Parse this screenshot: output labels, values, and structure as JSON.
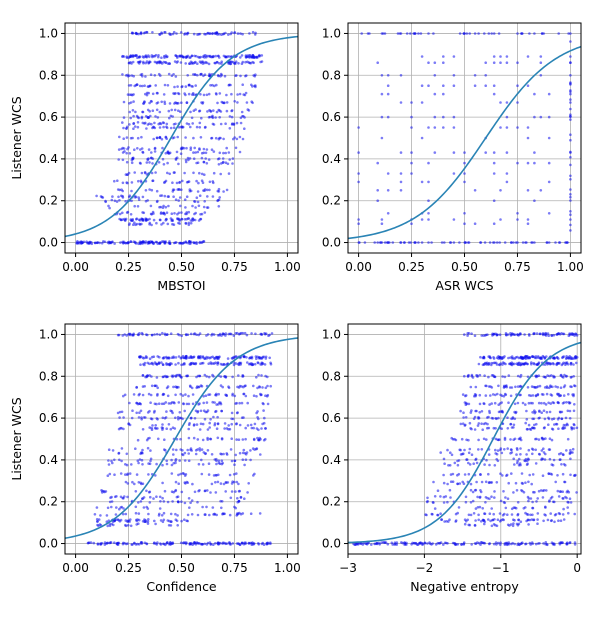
{
  "figure": {
    "colors": {
      "points": "#1010ee",
      "curve": "#2a84b5",
      "grid": "#b0b0b0",
      "frame": "#000000"
    }
  },
  "chart_data": [
    {
      "type": "scatter",
      "xlabel": "MBSTOI",
      "ylabel": "Listener WCS",
      "xlim": [
        -0.05,
        1.05
      ],
      "ylim": [
        -0.05,
        1.05
      ],
      "xticks": [
        0.0,
        0.25,
        0.5,
        0.75,
        1.0
      ],
      "xtick_labels": [
        "0.00",
        "0.25",
        "0.50",
        "0.75",
        "1.00"
      ],
      "yticks": [
        0.0,
        0.2,
        0.4,
        0.6,
        0.8,
        1.0
      ],
      "ytick_labels": [
        "0.0",
        "0.2",
        "0.4",
        "0.6",
        "0.8",
        "1.0"
      ],
      "grid": true,
      "fit_curve": {
        "type": "logistic",
        "midpoint": 0.45,
        "slope": 7.0
      },
      "point_bands": [
        {
          "y": 1.0,
          "x": [
            0.25,
            0.85
          ],
          "n": 70
        },
        {
          "y": 0.89,
          "x": [
            0.22,
            0.88
          ],
          "n": 130
        },
        {
          "y": 0.86,
          "x": [
            0.25,
            0.88
          ],
          "n": 90
        },
        {
          "y": 0.8,
          "x": [
            0.22,
            0.85
          ],
          "n": 50
        },
        {
          "y": 0.75,
          "x": [
            0.25,
            0.85
          ],
          "n": 40
        },
        {
          "y": 0.71,
          "x": [
            0.22,
            0.82
          ],
          "n": 40
        },
        {
          "y": 0.67,
          "x": [
            0.22,
            0.85
          ],
          "n": 40
        },
        {
          "y": 0.63,
          "x": [
            0.25,
            0.82
          ],
          "n": 35
        },
        {
          "y": 0.6,
          "x": [
            0.2,
            0.8
          ],
          "n": 35
        },
        {
          "y": 0.57,
          "x": [
            0.22,
            0.8
          ],
          "n": 35
        },
        {
          "y": 0.55,
          "x": [
            0.22,
            0.8
          ],
          "n": 30
        },
        {
          "y": 0.5,
          "x": [
            0.2,
            0.8
          ],
          "n": 35
        },
        {
          "y": 0.45,
          "x": [
            0.2,
            0.78
          ],
          "n": 30
        },
        {
          "y": 0.43,
          "x": [
            0.22,
            0.78
          ],
          "n": 30
        },
        {
          "y": 0.4,
          "x": [
            0.2,
            0.75
          ],
          "n": 30
        },
        {
          "y": 0.38,
          "x": [
            0.22,
            0.75
          ],
          "n": 25
        },
        {
          "y": 0.33,
          "x": [
            0.2,
            0.75
          ],
          "n": 25
        },
        {
          "y": 0.29,
          "x": [
            0.18,
            0.72
          ],
          "n": 30
        },
        {
          "y": 0.25,
          "x": [
            0.2,
            0.72
          ],
          "n": 30
        },
        {
          "y": 0.22,
          "x": [
            0.08,
            0.72
          ],
          "n": 30
        },
        {
          "y": 0.2,
          "x": [
            0.12,
            0.7
          ],
          "n": 25
        },
        {
          "y": 0.17,
          "x": [
            0.15,
            0.7
          ],
          "n": 20
        },
        {
          "y": 0.14,
          "x": [
            0.18,
            0.62
          ],
          "n": 35
        },
        {
          "y": 0.11,
          "x": [
            0.18,
            0.6
          ],
          "n": 60
        },
        {
          "y": 0.09,
          "x": [
            0.2,
            0.55
          ],
          "n": 25
        },
        {
          "y": 0.0,
          "x": [
            0.0,
            0.62
          ],
          "n": 140
        }
      ]
    },
    {
      "type": "scatter",
      "xlabel": "ASR WCS",
      "ylabel": "",
      "xlim": [
        -0.05,
        1.05
      ],
      "ylim": [
        -0.05,
        1.05
      ],
      "xticks": [
        0.0,
        0.25,
        0.5,
        0.75,
        1.0
      ],
      "xtick_labels": [
        "0.00",
        "0.25",
        "0.50",
        "0.75",
        "1.00"
      ],
      "yticks": [
        0.0,
        0.2,
        0.4,
        0.6,
        0.8,
        1.0
      ],
      "ytick_labels": [
        "0.0",
        "0.2",
        "0.4",
        "0.6",
        "0.8",
        "1.0"
      ],
      "grid": true,
      "fit_curve": {
        "type": "logistic",
        "midpoint": 0.6,
        "slope": 6.0
      },
      "grid_x_values": [
        0.0,
        0.09,
        0.11,
        0.14,
        0.2,
        0.25,
        0.3,
        0.33,
        0.36,
        0.4,
        0.45,
        0.5,
        0.55,
        0.6,
        0.64,
        0.67,
        0.7,
        0.75,
        0.8,
        0.83,
        0.86,
        0.9,
        1.0
      ],
      "grid_y_values": [
        0.0,
        0.09,
        0.11,
        0.14,
        0.2,
        0.25,
        0.29,
        0.33,
        0.38,
        0.43,
        0.5,
        0.55,
        0.6,
        0.67,
        0.71,
        0.75,
        0.8,
        0.86,
        0.89,
        1.0
      ],
      "dense_rows": [
        {
          "y": 0.0,
          "x": [
            0.0,
            1.0
          ],
          "n": 60
        },
        {
          "y": 1.0,
          "x": [
            0.0,
            1.0
          ],
          "n": 35
        }
      ],
      "dense_columns": [
        {
          "x": 1.0,
          "y": [
            0.0,
            1.0
          ],
          "n": 28
        }
      ]
    },
    {
      "type": "scatter",
      "xlabel": "Confidence",
      "ylabel": "Listener WCS",
      "xlim": [
        -0.05,
        1.05
      ],
      "ylim": [
        -0.05,
        1.05
      ],
      "xticks": [
        0.0,
        0.25,
        0.5,
        0.75,
        1.0
      ],
      "xtick_labels": [
        "0.00",
        "0.25",
        "0.50",
        "0.75",
        "1.00"
      ],
      "yticks": [
        0.0,
        0.2,
        0.4,
        0.6,
        0.8,
        1.0
      ],
      "ytick_labels": [
        "0.0",
        "0.2",
        "0.4",
        "0.6",
        "0.8",
        "1.0"
      ],
      "grid": true,
      "fit_curve": {
        "type": "logistic",
        "midpoint": 0.47,
        "slope": 7.0
      },
      "point_bands": [
        {
          "y": 1.0,
          "x": [
            0.2,
            0.93
          ],
          "n": 80
        },
        {
          "y": 0.89,
          "x": [
            0.3,
            0.93
          ],
          "n": 110
        },
        {
          "y": 0.86,
          "x": [
            0.3,
            0.93
          ],
          "n": 90
        },
        {
          "y": 0.8,
          "x": [
            0.25,
            0.93
          ],
          "n": 55
        },
        {
          "y": 0.75,
          "x": [
            0.25,
            0.93
          ],
          "n": 45
        },
        {
          "y": 0.71,
          "x": [
            0.2,
            0.92
          ],
          "n": 45
        },
        {
          "y": 0.67,
          "x": [
            0.25,
            0.92
          ],
          "n": 45
        },
        {
          "y": 0.63,
          "x": [
            0.2,
            0.9
          ],
          "n": 35
        },
        {
          "y": 0.6,
          "x": [
            0.2,
            0.9
          ],
          "n": 35
        },
        {
          "y": 0.57,
          "x": [
            0.25,
            0.9
          ],
          "n": 30
        },
        {
          "y": 0.55,
          "x": [
            0.2,
            0.9
          ],
          "n": 35
        },
        {
          "y": 0.5,
          "x": [
            0.2,
            0.9
          ],
          "n": 35
        },
        {
          "y": 0.45,
          "x": [
            0.15,
            0.88
          ],
          "n": 30
        },
        {
          "y": 0.43,
          "x": [
            0.18,
            0.88
          ],
          "n": 30
        },
        {
          "y": 0.4,
          "x": [
            0.15,
            0.85
          ],
          "n": 30
        },
        {
          "y": 0.38,
          "x": [
            0.15,
            0.85
          ],
          "n": 25
        },
        {
          "y": 0.33,
          "x": [
            0.15,
            0.85
          ],
          "n": 30
        },
        {
          "y": 0.29,
          "x": [
            0.12,
            0.82
          ],
          "n": 30
        },
        {
          "y": 0.25,
          "x": [
            0.12,
            0.82
          ],
          "n": 30
        },
        {
          "y": 0.22,
          "x": [
            0.12,
            0.8
          ],
          "n": 25
        },
        {
          "y": 0.2,
          "x": [
            0.12,
            0.8
          ],
          "n": 25
        },
        {
          "y": 0.17,
          "x": [
            0.1,
            0.8
          ],
          "n": 20
        },
        {
          "y": 0.14,
          "x": [
            0.08,
            0.9
          ],
          "n": 40
        },
        {
          "y": 0.11,
          "x": [
            0.1,
            0.55
          ],
          "n": 50
        },
        {
          "y": 0.09,
          "x": [
            0.1,
            0.5
          ],
          "n": 20
        },
        {
          "y": 0.0,
          "x": [
            0.05,
            0.93
          ],
          "n": 150
        }
      ]
    },
    {
      "type": "scatter",
      "xlabel": "Negative entropy",
      "ylabel": "",
      "xlim": [
        -3.0,
        0.05
      ],
      "ylim": [
        -0.05,
        1.05
      ],
      "xticks": [
        -3,
        -2,
        -1,
        0
      ],
      "xtick_labels": [
        "−3",
        "−2",
        "−1",
        "0"
      ],
      "yticks": [
        0.0,
        0.2,
        0.4,
        0.6,
        0.8,
        1.0
      ],
      "ytick_labels": [
        "0.0",
        "0.2",
        "0.4",
        "0.6",
        "0.8",
        "1.0"
      ],
      "grid": true,
      "fit_curve": {
        "type": "logistic",
        "midpoint": -1.1,
        "slope": 2.8
      },
      "point_bands": [
        {
          "y": 1.0,
          "x": [
            -1.5,
            0.0
          ],
          "n": 80
        },
        {
          "y": 0.89,
          "x": [
            -1.3,
            0.0
          ],
          "n": 110
        },
        {
          "y": 0.86,
          "x": [
            -1.3,
            0.0
          ],
          "n": 90
        },
        {
          "y": 0.8,
          "x": [
            -1.5,
            0.0
          ],
          "n": 50
        },
        {
          "y": 0.75,
          "x": [
            -1.4,
            0.0
          ],
          "n": 45
        },
        {
          "y": 0.71,
          "x": [
            -1.5,
            0.0
          ],
          "n": 45
        },
        {
          "y": 0.67,
          "x": [
            -1.5,
            0.0
          ],
          "n": 40
        },
        {
          "y": 0.63,
          "x": [
            -1.6,
            0.0
          ],
          "n": 35
        },
        {
          "y": 0.6,
          "x": [
            -1.5,
            0.0
          ],
          "n": 35
        },
        {
          "y": 0.57,
          "x": [
            -1.6,
            0.0
          ],
          "n": 30
        },
        {
          "y": 0.55,
          "x": [
            -1.5,
            0.0
          ],
          "n": 35
        },
        {
          "y": 0.5,
          "x": [
            -1.7,
            0.0
          ],
          "n": 35
        },
        {
          "y": 0.45,
          "x": [
            -1.7,
            0.0
          ],
          "n": 30
        },
        {
          "y": 0.43,
          "x": [
            -1.8,
            0.0
          ],
          "n": 30
        },
        {
          "y": 0.4,
          "x": [
            -1.8,
            0.0
          ],
          "n": 30
        },
        {
          "y": 0.38,
          "x": [
            -1.8,
            0.0
          ],
          "n": 25
        },
        {
          "y": 0.33,
          "x": [
            -1.8,
            0.0
          ],
          "n": 30
        },
        {
          "y": 0.29,
          "x": [
            -1.9,
            0.0
          ],
          "n": 30
        },
        {
          "y": 0.25,
          "x": [
            -1.9,
            0.0
          ],
          "n": 30
        },
        {
          "y": 0.22,
          "x": [
            -2.0,
            0.0
          ],
          "n": 30
        },
        {
          "y": 0.2,
          "x": [
            -2.0,
            0.0
          ],
          "n": 25
        },
        {
          "y": 0.17,
          "x": [
            -1.9,
            0.0
          ],
          "n": 20
        },
        {
          "y": 0.14,
          "x": [
            -2.0,
            0.0
          ],
          "n": 40
        },
        {
          "y": 0.11,
          "x": [
            -1.8,
            -0.1
          ],
          "n": 50
        },
        {
          "y": 0.09,
          "x": [
            -1.5,
            -0.5
          ],
          "n": 20
        },
        {
          "y": 0.0,
          "x": [
            -3.0,
            0.0
          ],
          "n": 160
        }
      ]
    }
  ]
}
